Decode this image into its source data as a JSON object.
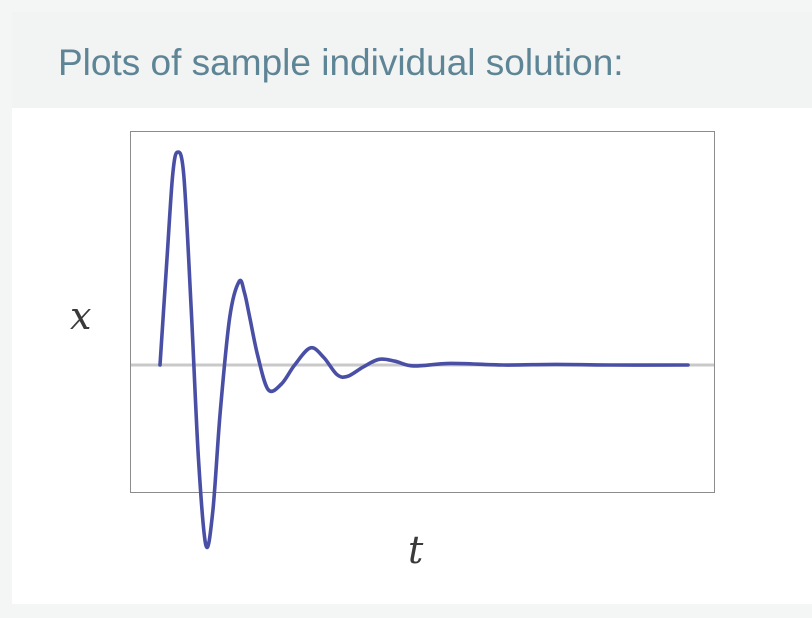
{
  "header": {
    "title": "Plots of sample individual solution:"
  },
  "chart_data": {
    "type": "line",
    "title": "",
    "xlabel": "t",
    "ylabel": "x",
    "ticks": "none",
    "grid": false,
    "baseline": {
      "y": 0,
      "color": "#c9c9c9"
    },
    "xlim": [
      0,
      10
    ],
    "ylim": [
      -1.15,
      1.2
    ],
    "series": [
      {
        "color": "#4a4fa6",
        "x": [
          0.0,
          0.13,
          0.24,
          0.33,
          0.45,
          0.59,
          0.73,
          0.87,
          1.0,
          1.14,
          1.32,
          1.5,
          1.6,
          1.7,
          1.85,
          2.05,
          2.3,
          2.55,
          2.85,
          3.1,
          3.35,
          3.55,
          3.85,
          4.15,
          4.45,
          4.8,
          5.5,
          6.5,
          7.5,
          8.5,
          10.0
        ],
        "y": [
          0.0,
          0.55,
          1.0,
          1.12,
          1.0,
          0.3,
          -0.5,
          -0.95,
          -0.77,
          -0.25,
          0.25,
          0.44,
          0.38,
          0.25,
          0.05,
          -0.13,
          -0.1,
          0.0,
          0.09,
          0.04,
          -0.05,
          -0.06,
          -0.01,
          0.03,
          0.02,
          -0.005,
          0.008,
          0.0,
          0.003,
          0.0,
          0.0
        ]
      }
    ]
  }
}
